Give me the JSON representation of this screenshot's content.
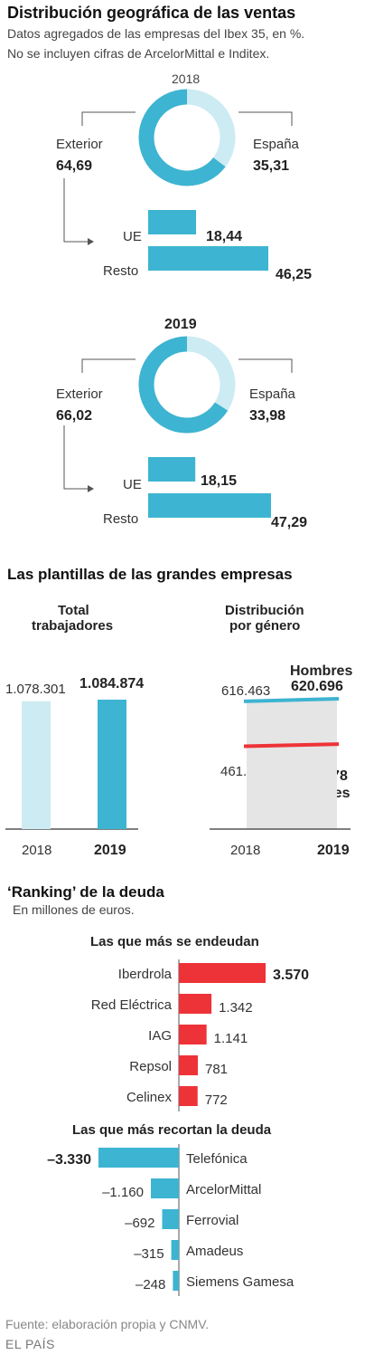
{
  "header": {
    "title": "Distribución geográfica de las ventas",
    "subtitle_1": "Datos agregados de las empresas del Ibex 35, en %.",
    "subtitle_2": "No se incluyen cifras de ArcelorMittal e Inditex."
  },
  "geo": [
    {
      "year": "2018",
      "exterior_label": "Exterior",
      "exterior_value": "64,69",
      "spain_label": "España",
      "spain_value": "35,31",
      "ue_label": "UE",
      "ue_value": "18,44",
      "resto_label": "Resto",
      "resto_value": "46,25"
    },
    {
      "year": "2019",
      "exterior_label": "Exterior",
      "exterior_value": "66,02",
      "spain_label": "España",
      "spain_value": "33,98",
      "ue_label": "UE",
      "ue_value": "18,15",
      "resto_label": "Resto",
      "resto_value": "47,29"
    }
  ],
  "staff": {
    "title": "Las plantillas de las grandes empresas",
    "total_title_1": "Total",
    "total_title_2": "trabajadores",
    "total_2018": "1.078.301",
    "total_2019": "1.084.874",
    "gender_title_1": "Distribución",
    "gender_title_2": "por género",
    "men_label": "Hombres",
    "men_2018": "616.463",
    "men_2019": "620.696",
    "women_label": "Mujeres",
    "women_2018": "461.568",
    "women_2019": "464.178",
    "year_2018": "2018",
    "year_2019": "2019"
  },
  "debt": {
    "title": "‘Ranking’ de la deuda",
    "subtitle": "En millones de euros.",
    "up_title": "Las que más se endeudan",
    "down_title": "Las que más recortan la deuda"
  },
  "chart_data": [
    {
      "type": "pie",
      "title": "2018",
      "categories": [
        "Exterior",
        "España"
      ],
      "values": [
        64.69,
        35.31
      ]
    },
    {
      "type": "bar",
      "title": "",
      "categories": [
        "UE",
        "Resto"
      ],
      "values": [
        18.44,
        46.25
      ]
    },
    {
      "type": "pie",
      "title": "2019",
      "categories": [
        "Exterior",
        "España"
      ],
      "values": [
        66.02,
        33.98
      ]
    },
    {
      "type": "bar",
      "title": "",
      "categories": [
        "UE",
        "Resto"
      ],
      "values": [
        18.15,
        47.29
      ]
    },
    {
      "type": "bar",
      "title": "Total trabajadores",
      "categories": [
        "2018",
        "2019"
      ],
      "values": [
        1078301,
        1084874
      ]
    },
    {
      "type": "line",
      "title": "Distribución por género",
      "x": [
        "2018",
        "2019"
      ],
      "series": [
        {
          "name": "Hombres",
          "values": [
            616463,
            620696
          ]
        },
        {
          "name": "Mujeres",
          "values": [
            461568,
            464178
          ]
        }
      ]
    },
    {
      "type": "bar",
      "title": "Las que más se endeudan",
      "categories": [
        "Iberdrola",
        "Red Eléctrica",
        "IAG",
        "Repsol",
        "Celinex"
      ],
      "values": [
        3570,
        1342,
        1141,
        781,
        772
      ],
      "value_labels": [
        "3.570",
        "1.342",
        "1.141",
        "781",
        "772"
      ]
    },
    {
      "type": "bar",
      "title": "Las que más recortan la deuda",
      "categories": [
        "Telefónica",
        "ArcelorMittal",
        "Ferrovial",
        "Amadeus",
        "Siemens Gamesa"
      ],
      "values": [
        -3330,
        -1160,
        -692,
        -315,
        -248
      ],
      "value_labels": [
        "–3.330",
        "–1.160",
        "–692",
        "–315",
        "–248"
      ]
    }
  ],
  "colors": {
    "blue": "#3db4d1",
    "light_blue": "#cdebf3",
    "red": "#ee3338",
    "grey_area": "#e5e5e5",
    "axis": "#555555"
  },
  "footer": {
    "source": "Fuente: elaboración propia y CNMV.",
    "brand": "EL PAÍS"
  }
}
